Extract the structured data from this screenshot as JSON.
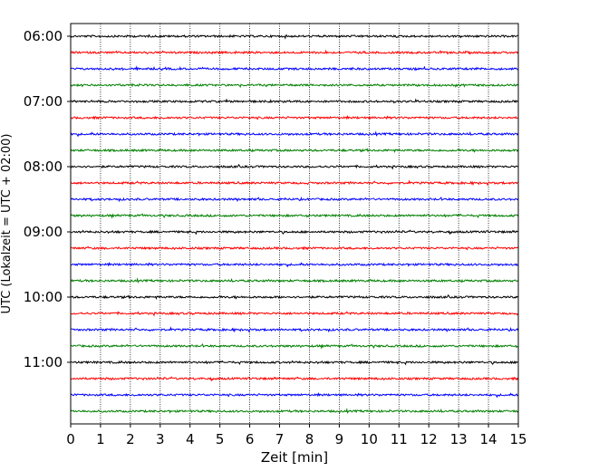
{
  "chart_data": {
    "type": "line",
    "title": "",
    "xlabel": "Zeit  [min]",
    "ylabel": "UTC (Lokalzeit = UTC + 02:00)",
    "xlim": [
      0,
      15
    ],
    "x_ticks": [
      "0",
      "1",
      "2",
      "3",
      "4",
      "5",
      "6",
      "7",
      "8",
      "9",
      "10",
      "11",
      "12",
      "13",
      "14",
      "15"
    ],
    "y_ticks": [
      {
        "label": "06:00",
        "trace": 0
      },
      {
        "label": "07:00",
        "trace": 4
      },
      {
        "label": "08:00",
        "trace": 8
      },
      {
        "label": "09:00",
        "trace": 12
      },
      {
        "label": "10:00",
        "trace": 16
      },
      {
        "label": "11:00",
        "trace": 20
      }
    ],
    "vertical_grid": true,
    "grid_style": "dotted",
    "trace_interval_min": 15,
    "trace_count": 24,
    "first_trace": "06:00",
    "colors": [
      "#000000",
      "#ff0000",
      "#0000ff",
      "#008000"
    ]
  }
}
